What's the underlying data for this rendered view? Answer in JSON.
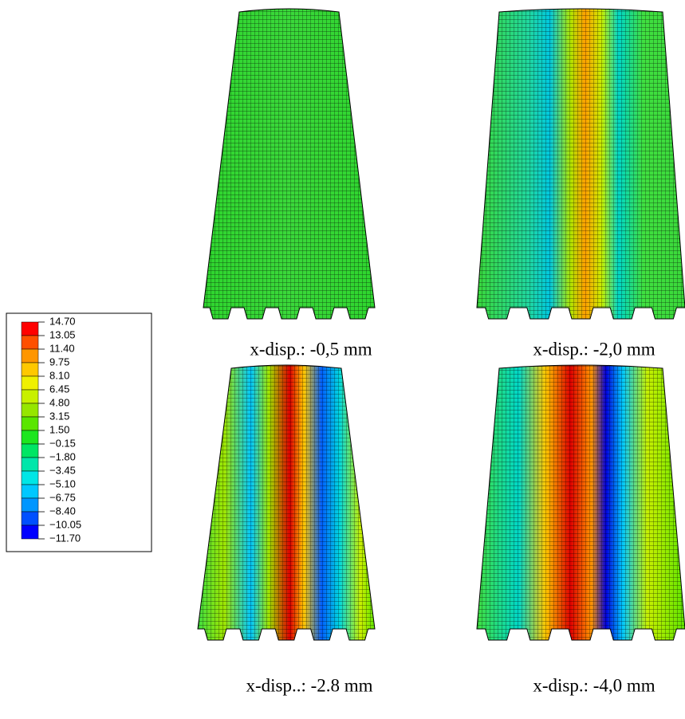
{
  "legend": {
    "labels": [
      "14.70",
      "13.05",
      "11.40",
      "9.75",
      "8.10",
      "6.45",
      "4.80",
      "3.15",
      "1.50",
      "−0.15",
      "−1.80",
      "−3.45",
      "−5.10",
      "−6.75",
      "−8.40",
      "−10.05",
      "−11.70"
    ],
    "colors": [
      "#ff0000",
      "#ff5000",
      "#ff9600",
      "#ffc800",
      "#f0f000",
      "#c8f000",
      "#96e600",
      "#5ae600",
      "#1ee61e",
      "#00e664",
      "#00e6aa",
      "#00e6e6",
      "#00c8ff",
      "#0096ff",
      "#0050ff",
      "#0000ff"
    ]
  },
  "panels": [
    {
      "caption": "x-disp.: -0,5 mm"
    },
    {
      "caption": "x-disp.: -2,0 mm"
    },
    {
      "caption": "x-disp..: -2.8 mm"
    },
    {
      "caption": "x-disp.: -4,0 mm"
    }
  ]
}
